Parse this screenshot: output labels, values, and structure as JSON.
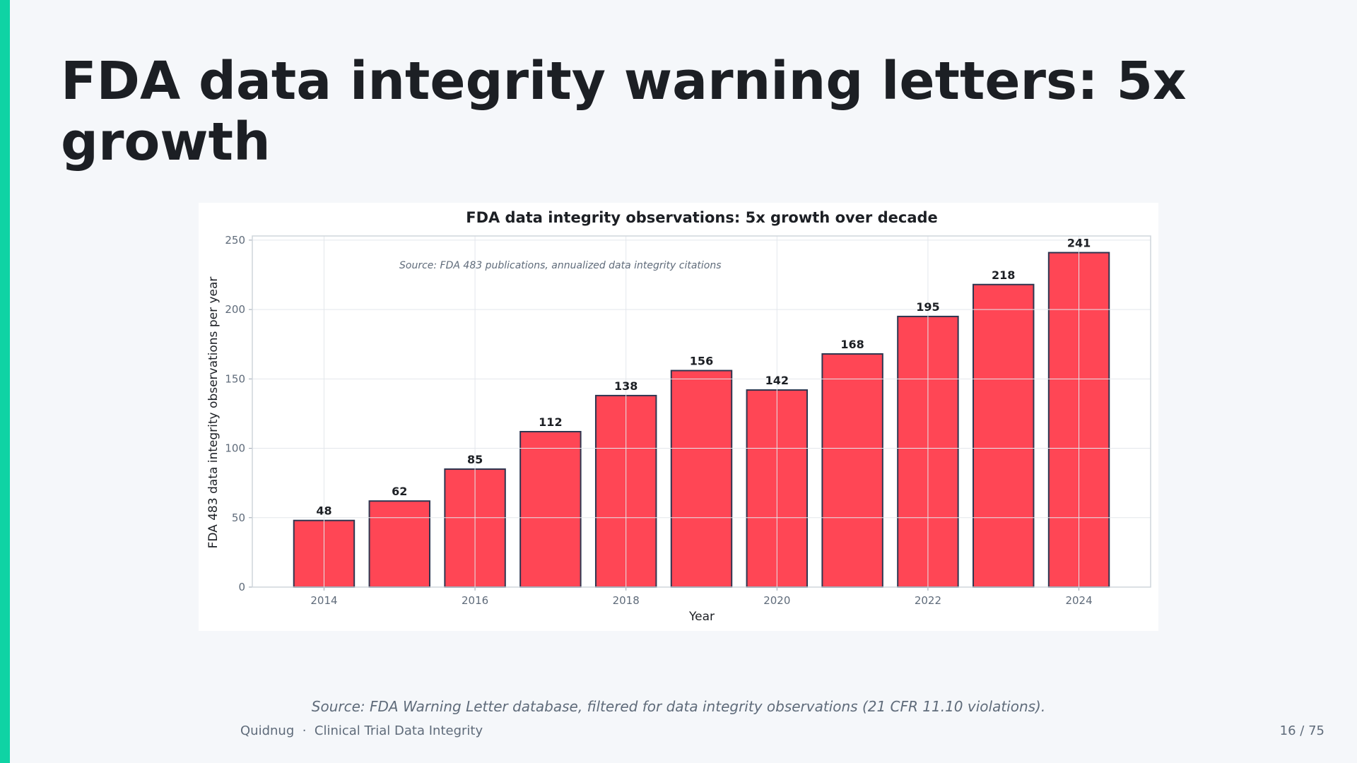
{
  "slide": {
    "title": "FDA data integrity warning letters: 5x growth",
    "source": "Source: FDA Warning Letter database, filtered for data integrity observations (21 CFR 11.10 violations).",
    "footer": {
      "brand": "Quidnug",
      "separator": "·",
      "deck": "Clinical Trial Data Integrity",
      "page": "16 / 75"
    },
    "accent_color": "#0fd3a4"
  },
  "chart_data": {
    "type": "bar",
    "title": "FDA data integrity observations: 5x growth over decade",
    "annotation": "Source: FDA 483 publications, annualized data integrity citations",
    "xlabel": "Year",
    "ylabel": "FDA 483 data integrity observations per year",
    "x": [
      2014,
      2015,
      2016,
      2017,
      2018,
      2019,
      2020,
      2021,
      2022,
      2023,
      2024
    ],
    "values": [
      48,
      62,
      85,
      112,
      138,
      156,
      142,
      168,
      195,
      218,
      241
    ],
    "xticks": [
      "2014",
      "2016",
      "2018",
      "2020",
      "2022",
      "2024"
    ],
    "yticks": [
      "0",
      "50",
      "100",
      "150",
      "200",
      "250"
    ],
    "ylim": [
      0,
      253
    ],
    "xlim": [
      2013.05,
      2024.95
    ],
    "grid": true,
    "legend": "none",
    "bar_color": "#ff4655",
    "bar_edge_color": "#2e3650"
  }
}
